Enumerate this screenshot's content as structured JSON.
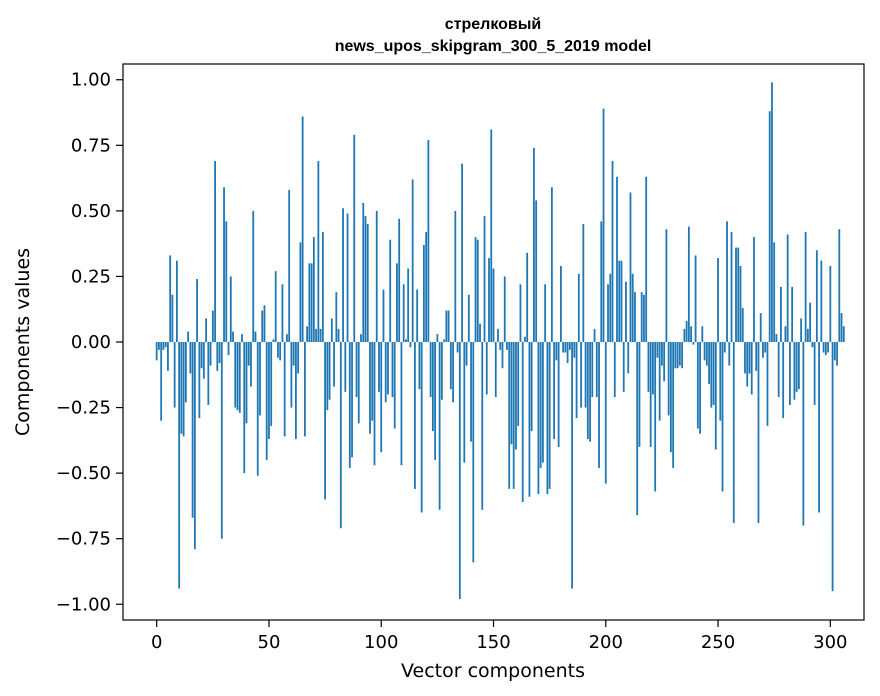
{
  "chart_data": {
    "type": "bar",
    "title_lines": [
      "стрелковый",
      "news_upos_skipgram_300_5_2019 model"
    ],
    "xlabel": "Vector components",
    "ylabel": "Components values",
    "xlim": [
      -15,
      315
    ],
    "ylim": [
      -1.06,
      1.06
    ],
    "x_ticks": [
      0,
      50,
      100,
      150,
      200,
      250,
      300
    ],
    "y_ticks": [
      1.0,
      0.75,
      0.5,
      0.25,
      0.0,
      -0.25,
      -0.5,
      -0.75,
      -1.0
    ],
    "x_tick_labels": [
      "0",
      "50",
      "100",
      "150",
      "200",
      "250",
      "300"
    ],
    "y_tick_labels": [
      "1.00",
      "0.75",
      "0.50",
      "0.25",
      "0.00",
      "−0.25",
      "−0.50",
      "−0.75",
      "−1.00"
    ],
    "bar_color": "#1f77b4",
    "grid": false,
    "values": [
      -0.07,
      -0.03,
      -0.3,
      -0.03,
      -0.02,
      -0.11,
      0.33,
      0.18,
      -0.25,
      0.31,
      -0.94,
      -0.35,
      -0.36,
      -0.23,
      0.04,
      -0.12,
      -0.67,
      -0.79,
      0.24,
      -0.29,
      -0.1,
      -0.14,
      0.09,
      -0.24,
      -0.09,
      0.12,
      0.69,
      -0.11,
      -0.08,
      -0.75,
      0.59,
      0.46,
      -0.05,
      0.25,
      0.04,
      -0.25,
      -0.26,
      -0.27,
      0.03,
      -0.5,
      -0.31,
      -0.09,
      -0.17,
      0.5,
      0.04,
      -0.51,
      -0.28,
      0.12,
      0.14,
      -0.45,
      -0.37,
      -0.32,
      0.01,
      0.27,
      -0.06,
      -0.07,
      0.22,
      -0.36,
      0.03,
      0.58,
      -0.25,
      -0.09,
      -0.37,
      -0.12,
      0.38,
      0.86,
      -0.36,
      0.06,
      0.3,
      0.3,
      0.4,
      0.05,
      0.69,
      0.05,
      0.42,
      -0.6,
      -0.26,
      -0.22,
      0.09,
      -0.17,
      0.19,
      0.05,
      -0.71,
      0.51,
      -0.19,
      0.49,
      -0.48,
      -0.44,
      0.79,
      -0.21,
      -0.31,
      0.03,
      0.53,
      0.48,
      0.45,
      -0.35,
      -0.3,
      -0.47,
      0.5,
      -0.19,
      -0.42,
      0.2,
      -0.23,
      -0.2,
      0.39,
      -0.21,
      -0.33,
      0.3,
      0.47,
      -0.47,
      0.22,
      0.01,
      0.28,
      -0.02,
      0.62,
      -0.56,
      0.2,
      -0.18,
      -0.65,
      0.37,
      0.42,
      0.77,
      -0.21,
      -0.34,
      -0.45,
      0.03,
      -0.64,
      -0.22,
      0.01,
      0.12,
      0.12,
      -0.18,
      -0.23,
      0.5,
      -0.04,
      -0.98,
      0.68,
      -0.46,
      -0.09,
      0.18,
      -0.38,
      -0.84,
      0.4,
      0.39,
      0.07,
      -0.64,
      0.48,
      -0.2,
      0.32,
      0.81,
      0.28,
      -0.21,
      0.05,
      -0.03,
      -0.1,
      0.25,
      -0.03,
      -0.56,
      -0.39,
      -0.56,
      -0.41,
      -0.32,
      0.22,
      -0.61,
      0.02,
      0.34,
      -0.59,
      -0.34,
      0.74,
      0.54,
      -0.58,
      -0.48,
      -0.46,
      0.22,
      -0.58,
      -0.56,
      0.59,
      -0.37,
      -0.07,
      -0.4,
      0.29,
      -0.04,
      -0.04,
      -0.08,
      -0.03,
      -0.94,
      -0.06,
      -0.29,
      0.26,
      -0.25,
      0.45,
      -0.25,
      -0.37,
      -0.38,
      -0.21,
      0.05,
      -0.21,
      -0.48,
      0.46,
      0.89,
      -0.54,
      0.22,
      0.26,
      0.69,
      -0.21,
      0.63,
      0.31,
      0.31,
      -0.19,
      0.23,
      -0.12,
      0.57,
      0.26,
      0.19,
      -0.66,
      -0.4,
      0.19,
      0.18,
      0.63,
      -0.19,
      -0.4,
      -0.2,
      -0.57,
      -0.06,
      -0.3,
      -0.09,
      -0.15,
      0.43,
      -0.28,
      -0.42,
      -0.48,
      -0.1,
      -0.1,
      -0.09,
      -0.1,
      0.05,
      0.08,
      0.44,
      0.06,
      -0.01,
      0.33,
      -0.33,
      -0.35,
      0.06,
      -0.07,
      -0.09,
      -0.16,
      -0.25,
      -0.24,
      -0.41,
      0.32,
      -0.3,
      -0.57,
      -0.04,
      0.46,
      -0.09,
      0.42,
      -0.69,
      0.36,
      0.36,
      0.29,
      0.13,
      -0.12,
      -0.17,
      -0.12,
      -0.2,
      0.4,
      -0.11,
      -0.69,
      0.11,
      -0.06,
      -0.04,
      -0.32,
      0.88,
      0.99,
      0.38,
      0.03,
      -0.21,
      0.21,
      -0.29,
      0.06,
      0.41,
      -0.24,
      0.21,
      -0.22,
      -0.19,
      -0.18,
      0.09,
      -0.7,
      0.42,
      0.05,
      0.15,
      -0.02,
      -0.24,
      0.35,
      -0.65,
      0.31,
      -0.04,
      -0.05,
      -0.04,
      0.29,
      -0.95,
      -0.07,
      -0.09,
      0.43,
      0.11,
      0.06
    ]
  }
}
